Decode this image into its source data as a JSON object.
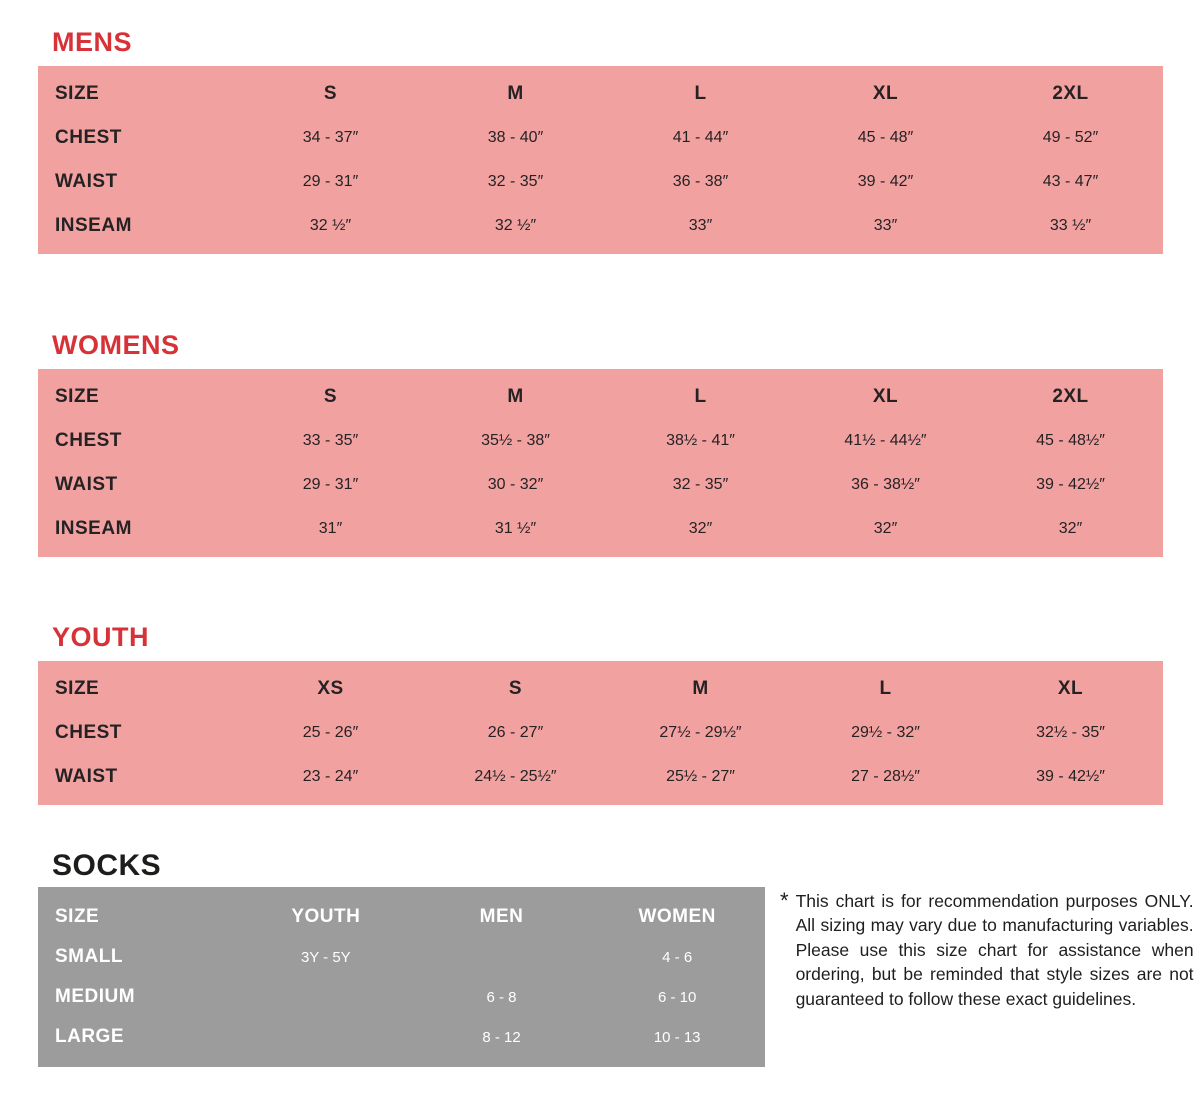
{
  "colors": {
    "heading_red": "#d63238",
    "heading_black": "#1d1d1b",
    "table_pink": "#f2a1a1",
    "table_gray": "#9c9c9c",
    "text_dark": "#231f20",
    "text_light": "#ffffff"
  },
  "apparel_sections": [
    {
      "title": "MENS",
      "size_label": "SIZE",
      "columns": [
        "S",
        "M",
        "L",
        "XL",
        "2XL"
      ],
      "rows": [
        {
          "label": "CHEST",
          "values": [
            "34 - 37″",
            "38 - 40″",
            "41 - 44″",
            "45 - 48″",
            "49 - 52″"
          ]
        },
        {
          "label": "WAIST",
          "values": [
            "29 - 31″",
            "32 - 35″",
            "36 - 38″",
            "39 - 42″",
            "43 - 47″"
          ]
        },
        {
          "label": "INSEAM",
          "values": [
            "32 ½″",
            "32 ½″",
            "33″",
            "33″",
            "33 ½″"
          ]
        }
      ]
    },
    {
      "title": "WOMENS",
      "size_label": "SIZE",
      "columns": [
        "S",
        "M",
        "L",
        "XL",
        "2XL"
      ],
      "rows": [
        {
          "label": "CHEST",
          "values": [
            "33 - 35″",
            "35½ - 38″",
            "38½ - 41″",
            "41½ - 44½″",
            "45 - 48½″"
          ]
        },
        {
          "label": "WAIST",
          "values": [
            "29 - 31″",
            "30 - 32″",
            "32 - 35″",
            "36 - 38½″",
            "39 - 42½″"
          ]
        },
        {
          "label": "INSEAM",
          "values": [
            "31″",
            "31 ½″",
            "32″",
            "32″",
            "32″"
          ]
        }
      ]
    },
    {
      "title": "YOUTH",
      "size_label": "SIZE",
      "columns": [
        "XS",
        "S",
        "M",
        "L",
        "XL"
      ],
      "rows": [
        {
          "label": "CHEST",
          "values": [
            "25 - 26″",
            "26 - 27″",
            "27½ - 29½″",
            "29½ - 32″",
            "32½ - 35″"
          ]
        },
        {
          "label": "WAIST",
          "values": [
            "23 - 24″",
            "24½ - 25½″",
            "25½ - 27″",
            "27 - 28½″",
            "39 - 42½″"
          ]
        }
      ]
    }
  ],
  "socks_section": {
    "title": "SOCKS",
    "size_label": "SIZE",
    "columns": [
      "YOUTH",
      "MEN",
      "WOMEN"
    ],
    "rows": [
      {
        "label": "SMALL",
        "values": [
          "3Y - 5Y",
          "",
          "4 - 6"
        ]
      },
      {
        "label": "MEDIUM",
        "values": [
          "",
          "6 - 8",
          "6 - 10"
        ]
      },
      {
        "label": "LARGE",
        "values": [
          "",
          "8 - 12",
          "10 - 13"
        ]
      }
    ]
  },
  "disclaimer": {
    "marker": "*",
    "text": "This chart is for recommendation purposes ONLY. All sizing may vary due to manufacturing variables. Please use this size chart for assistance when ordering, but be reminded that style sizes are not guaranteed to follow these exact guidelines."
  }
}
